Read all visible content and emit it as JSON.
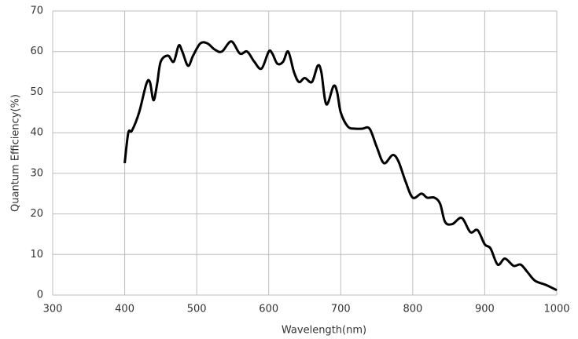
{
  "chart_data": {
    "type": "line",
    "x_label": "Wavelength(nm)",
    "y_label": "Quantum Efficiency(%)",
    "x": [
      400,
      405,
      410,
      420,
      430,
      435,
      440,
      445,
      450,
      460,
      468,
      475,
      480,
      488,
      495,
      505,
      515,
      525,
      535,
      548,
      560,
      570,
      580,
      590,
      600,
      605,
      612,
      620,
      627,
      635,
      642,
      650,
      660,
      668,
      673,
      680,
      690,
      695,
      700,
      710,
      720,
      730,
      740,
      750,
      760,
      772,
      780,
      790,
      800,
      812,
      820,
      830,
      838,
      845,
      855,
      868,
      880,
      890,
      900,
      908,
      918,
      928,
      940,
      950,
      960,
      970,
      985,
      1000
    ],
    "series": [
      {
        "name": "QE",
        "color": "#000000",
        "values": [
          32.5,
          40,
          40.5,
          45,
          52,
          52.5,
          48,
          52,
          57.5,
          59,
          57.5,
          61.5,
          60,
          56.5,
          59,
          62,
          62,
          60.5,
          60,
          62.5,
          59.5,
          60,
          57.5,
          55.8,
          60,
          59.5,
          57,
          57.5,
          60,
          55,
          52.5,
          53.5,
          52.5,
          56.5,
          55,
          47,
          51.5,
          50,
          45,
          41.5,
          41,
          41,
          41,
          36.5,
          32.5,
          34.5,
          33,
          28,
          24,
          25,
          24,
          24,
          22.5,
          18,
          17.5,
          19,
          15.5,
          16,
          12.5,
          11.5,
          7.5,
          9,
          7.2,
          7.5,
          5.5,
          3.5,
          2.5,
          1.2
        ]
      }
    ],
    "xlim": [
      300,
      1000
    ],
    "xticks": [
      300,
      400,
      500,
      600,
      700,
      800,
      900,
      1000
    ],
    "ylim": [
      0,
      70
    ],
    "yticks": [
      0,
      10,
      20,
      30,
      40,
      50,
      60,
      70
    ],
    "grid": true
  }
}
